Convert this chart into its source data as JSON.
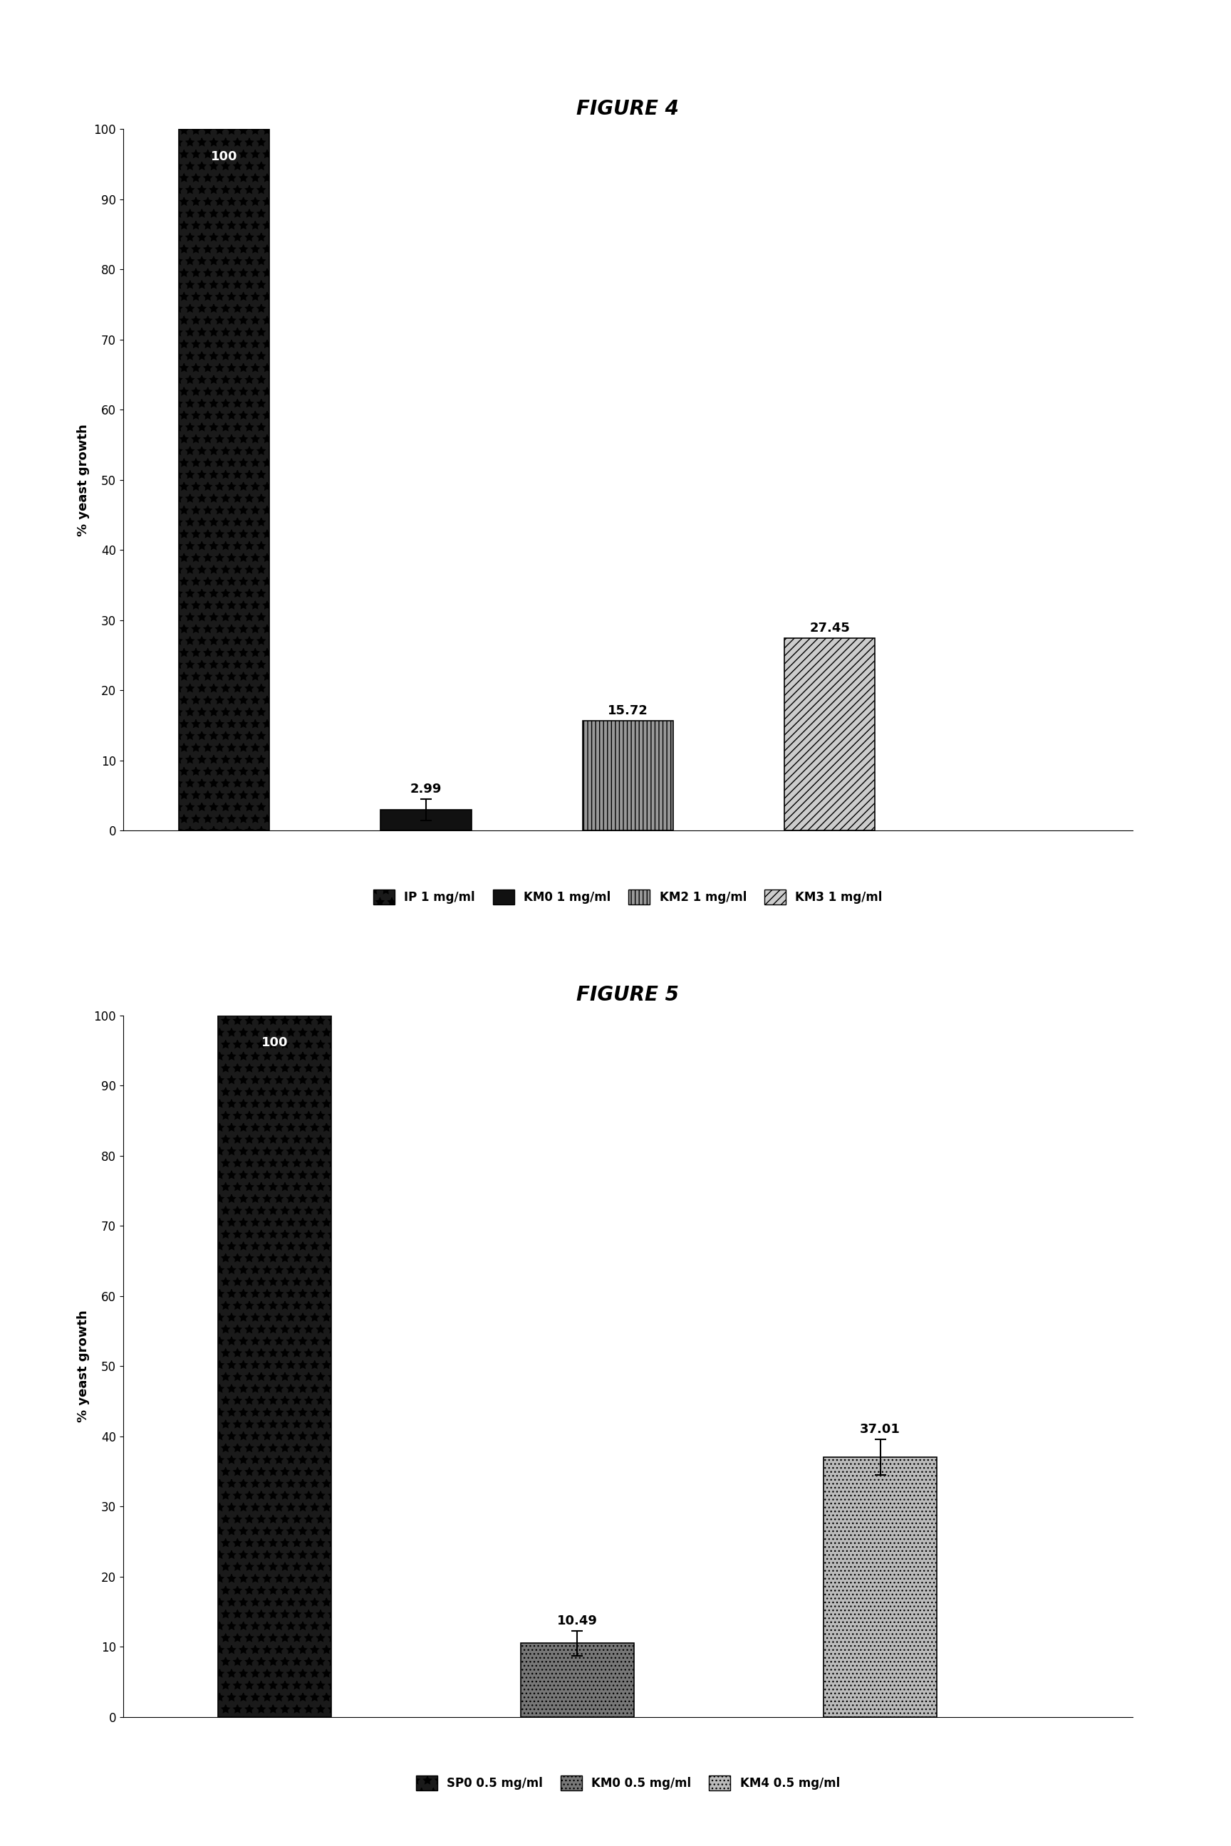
{
  "fig4": {
    "title": "FIGURE 4",
    "categories": [
      "IP 1 mg/ml",
      "KM0 1 mg/ml",
      "KM2 1 mg/ml",
      "KM3 1 mg/ml"
    ],
    "values": [
      100,
      2.99,
      15.72,
      27.45
    ],
    "errors": [
      0,
      1.5,
      0,
      0
    ],
    "bar_labels": [
      "100",
      "2.99",
      "15.72",
      "27.45"
    ],
    "ylabel": "% yeast growth",
    "ylim": [
      0,
      100
    ],
    "yticks": [
      0,
      10,
      20,
      30,
      40,
      50,
      60,
      70,
      80,
      90,
      100
    ],
    "bar_facecolors": [
      "#1a1a1a",
      "#111111",
      "#999999",
      "#cccccc"
    ],
    "bar_hatches": [
      "*",
      "",
      "|||",
      "///"
    ],
    "label_colors": [
      "white",
      "black",
      "black",
      "black"
    ],
    "legend_labels": [
      "IP 1 mg/ml",
      "KM0 1 mg/ml",
      "KM2 1 mg/ml",
      "KM3 1 mg/ml"
    ]
  },
  "fig5": {
    "title": "FIGURE 5",
    "categories": [
      "SP0 0.5 mg/ml",
      "KM0 0.5 mg/ml",
      "KM4 0.5 mg/ml"
    ],
    "values": [
      100,
      10.49,
      37.01
    ],
    "errors": [
      0,
      1.8,
      2.5
    ],
    "bar_labels": [
      "100",
      "10.49",
      "37.01"
    ],
    "ylabel": "% yeast growth",
    "ylim": [
      0,
      100
    ],
    "yticks": [
      0,
      10,
      20,
      30,
      40,
      50,
      60,
      70,
      80,
      90,
      100
    ],
    "bar_facecolors": [
      "#1a1a1a",
      "#777777",
      "#bbbbbb"
    ],
    "bar_hatches": [
      "*",
      "...",
      "..."
    ],
    "label_colors": [
      "white",
      "black",
      "black"
    ],
    "legend_labels": [
      "SP0 0.5 mg/ml",
      "KM0 0.5 mg/ml",
      "KM4 0.5 mg/ml"
    ]
  },
  "background_color": "#ffffff",
  "bar_edge_color": "#000000",
  "title_fontsize": 20,
  "ylabel_fontsize": 13,
  "tick_fontsize": 12,
  "value_label_fontsize": 13,
  "legend_fontsize": 12
}
